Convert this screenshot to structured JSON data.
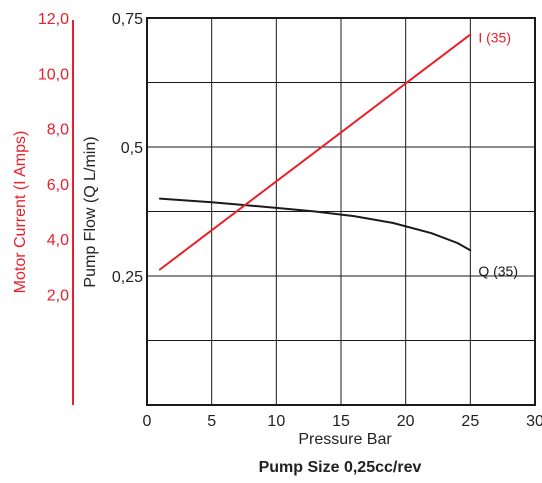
{
  "chart_data": {
    "type": "line",
    "caption": "Pump Size 0,25cc/rev",
    "xlabel": "Pressure Bar",
    "ylabel": "Pump Flow (Q L/min)",
    "y2label": "Motor Current (I Amps)",
    "xlim": [
      0,
      30
    ],
    "ylim": [
      0,
      0.75
    ],
    "y2lim": [
      -2,
      12
    ],
    "x_ticks": [
      0,
      5,
      10,
      15,
      20,
      25,
      30
    ],
    "x_tick_labels": [
      "0",
      "5",
      "10",
      "15",
      "20",
      "25",
      "30"
    ],
    "y_ticks": [
      0.25,
      0.5,
      0.75
    ],
    "y_tick_labels": [
      "0,25",
      "0,5",
      "0,75"
    ],
    "y2_ticks": [
      2,
      4,
      6,
      8,
      10,
      12
    ],
    "y2_tick_labels": [
      "2,0",
      "4,0",
      "6,0",
      "8,0",
      "10,0",
      "12,0"
    ],
    "grid": true,
    "series": [
      {
        "name": "Q (35)",
        "axis": "left",
        "color": "#1a1a1a",
        "x": [
          1,
          5,
          10,
          13,
          16,
          19,
          22,
          24,
          25
        ],
        "y": [
          0.4,
          0.393,
          0.382,
          0.375,
          0.366,
          0.353,
          0.333,
          0.314,
          0.3
        ]
      },
      {
        "name": "I (35)",
        "axis": "right",
        "color": "#e8202a",
        "x": [
          1,
          25
        ],
        "y": [
          2.9,
          11.4
        ]
      }
    ]
  }
}
